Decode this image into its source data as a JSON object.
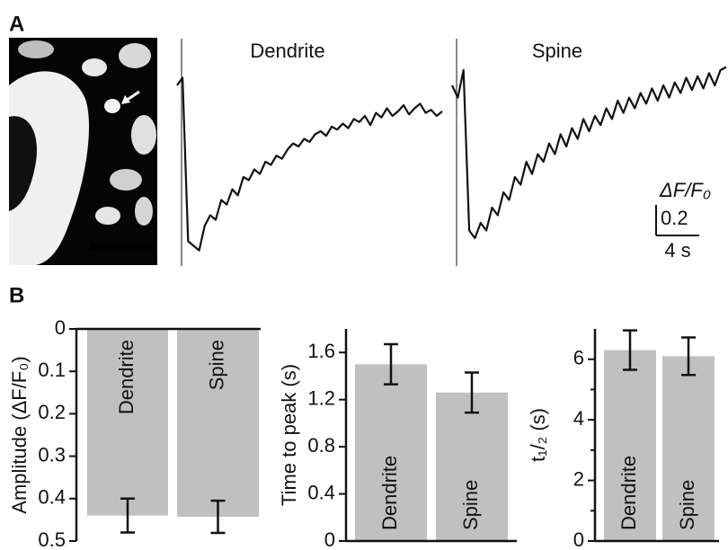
{
  "panel_labels": [
    "A",
    "B"
  ],
  "chart_data": [
    {
      "type": "line",
      "x": [
        0,
        0.5,
        1,
        1.5,
        2,
        2.5,
        3,
        3.5,
        4,
        4.5,
        5,
        5.5,
        6,
        6.5,
        7,
        7.5,
        8,
        8.5,
        9,
        9.5,
        10,
        10.5,
        11,
        11.5,
        12,
        12.5,
        13,
        13.5,
        14,
        14.5,
        15,
        15.5,
        16,
        16.5,
        17,
        17.5,
        18,
        18.5,
        19,
        19.5,
        20,
        20.5,
        21,
        21.5,
        22,
        22.5,
        23,
        23.5,
        24
      ],
      "xlim": [
        0,
        24
      ],
      "series": [
        {
          "name": "Dendrite",
          "color": "#111111",
          "values": [
            0.0,
            0.05,
            -1.02,
            -1.05,
            -1.08,
            -0.92,
            -0.85,
            -0.88,
            -0.75,
            -0.78,
            -0.68,
            -0.72,
            -0.6,
            -0.62,
            -0.55,
            -0.58,
            -0.5,
            -0.52,
            -0.46,
            -0.48,
            -0.42,
            -0.38,
            -0.4,
            -0.35,
            -0.37,
            -0.32,
            -0.3,
            -0.33,
            -0.27,
            -0.29,
            -0.25,
            -0.28,
            -0.22,
            -0.24,
            -0.2,
            -0.26,
            -0.18,
            -0.21,
            -0.15,
            -0.2,
            -0.17,
            -0.13,
            -0.19,
            -0.15,
            -0.12,
            -0.18,
            -0.16,
            -0.2,
            -0.17
          ]
        },
        {
          "name": "Spine",
          "color": "#111111",
          "values": [
            0.0,
            -0.08,
            0.1,
            -0.95,
            -1.0,
            -0.9,
            -0.95,
            -0.8,
            -0.85,
            -0.7,
            -0.75,
            -0.6,
            -0.65,
            -0.5,
            -0.58,
            -0.45,
            -0.5,
            -0.38,
            -0.45,
            -0.32,
            -0.4,
            -0.28,
            -0.35,
            -0.22,
            -0.3,
            -0.2,
            -0.26,
            -0.15,
            -0.22,
            -0.1,
            -0.18,
            -0.08,
            -0.15,
            -0.05,
            -0.12,
            -0.02,
            -0.1,
            0.0,
            -0.08,
            0.02,
            -0.05,
            0.05,
            -0.03,
            0.06,
            -0.02,
            0.08,
            0.0,
            0.1,
            0.12
          ]
        }
      ],
      "scale_bar": {
        "unit_label": "ΔF/F₀",
        "y": {
          "value": 0.2,
          "label": "0.2"
        },
        "x": {
          "value": 4,
          "label": "4 s"
        }
      }
    },
    {
      "type": "bar",
      "ylabel": "Amplitude (ΔF/F₀)",
      "inverted": true,
      "categories": [
        "Dendrite",
        "Spine"
      ],
      "values": [
        0.44,
        0.443
      ],
      "errors": [
        0.04,
        0.038
      ],
      "color": "#c0c0c0",
      "ylim": [
        0,
        0.5
      ],
      "yticks": [
        0,
        0.1,
        0.2,
        0.3,
        0.4,
        0.5
      ]
    },
    {
      "type": "bar",
      "ylabel": "Time to peak (s)",
      "inverted": false,
      "categories": [
        "Dendrite",
        "Spine"
      ],
      "values": [
        1.5,
        1.26
      ],
      "errors": [
        0.17,
        0.17
      ],
      "color": "#c0c0c0",
      "ylim": [
        0,
        1.8
      ],
      "yticks": [
        0,
        0.4,
        0.8,
        1.2,
        1.6
      ]
    },
    {
      "type": "bar",
      "ylabel": "t₁/₂ (s)",
      "inverted": false,
      "categories": [
        "Dendrite",
        "Spine"
      ],
      "values": [
        6.3,
        6.1
      ],
      "errors": [
        0.65,
        0.62
      ],
      "color": "#c0c0c0",
      "ylim": [
        0,
        7
      ],
      "yticks": [
        0,
        2,
        4,
        6
      ],
      "minor_yticks": [
        1,
        3,
        5
      ]
    }
  ]
}
